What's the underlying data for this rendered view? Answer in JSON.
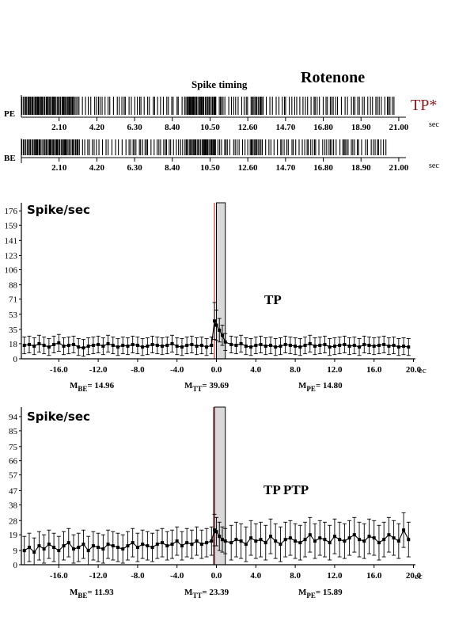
{
  "raster": {
    "spike_timing_label": "Spike timing",
    "condition_label": "Rotenone",
    "tag_label": "TP*",
    "tag_color": "#8b1a1a",
    "unit_label": "sec",
    "ticks": [
      "2.10",
      "4.20",
      "6.30",
      "8.40",
      "10.50",
      "12.60",
      "14.70",
      "16.80",
      "18.90",
      "21.00"
    ],
    "rows": [
      {
        "label": "PE",
        "end": 20.8
      },
      {
        "label": "BE",
        "end": 20.3
      }
    ]
  },
  "chart_data": [
    {
      "type": "line",
      "ylabel": "Spike/sec",
      "xunit": "ec",
      "annotation": "TP",
      "yticks": [
        0,
        18,
        35,
        53,
        71,
        88,
        106,
        123,
        141,
        159,
        176
      ],
      "xticks": [
        -16.0,
        -12.0,
        -8.0,
        -4.0,
        0.0,
        4.0,
        8.0,
        12.0,
        16.0,
        20.0
      ],
      "xtick_labels": [
        "-16.0",
        "-12.0",
        "-8.0",
        "-4.0",
        "0.0",
        "4.0",
        "8.0",
        "12.0",
        "16.0",
        "20.0"
      ],
      "xlim": [
        -19.8,
        20.2
      ],
      "ylim": [
        0,
        180
      ],
      "trigger_line_x": -0.2,
      "shaded_window": [
        0.0,
        0.9
      ],
      "series_be": {
        "x_start": -19.5,
        "step": 0.5,
        "count": 39,
        "mean": 15.5,
        "err": 10.0,
        "values": [
          16,
          17,
          15,
          18,
          16,
          14,
          17,
          19,
          15,
          16,
          17,
          14,
          13,
          15,
          16,
          17,
          15,
          18,
          16,
          14,
          16,
          15,
          17,
          16,
          14,
          15,
          17,
          16,
          15,
          16,
          18,
          15,
          14,
          16,
          17,
          15,
          16,
          14,
          16
        ]
      },
      "series_tt": [
        {
          "x": -0.2,
          "y": 45,
          "err": 22
        },
        {
          "x": 0.0,
          "y": 40,
          "err": 18
        },
        {
          "x": 0.3,
          "y": 34,
          "err": 14
        },
        {
          "x": 0.6,
          "y": 28,
          "err": 12
        },
        {
          "x": 0.9,
          "y": 20,
          "err": 10
        }
      ],
      "series_pe": {
        "x_start": 1.5,
        "step": 0.5,
        "count": 37,
        "mean": 15.0,
        "err": 10.0,
        "values": [
          17,
          16,
          18,
          15,
          14,
          16,
          17,
          15,
          16,
          14,
          15,
          17,
          16,
          15,
          14,
          16,
          18,
          15,
          16,
          17,
          14,
          15,
          16,
          17,
          15,
          16,
          14,
          17,
          16,
          15,
          16,
          17,
          15,
          16,
          14,
          15,
          14
        ]
      },
      "labels": {
        "m_be": "= 14.96",
        "m_tt": "= 39.69",
        "m_pe": "= 14.80"
      }
    },
    {
      "type": "line",
      "ylabel": "Spike/sec",
      "xunit": "ec",
      "annotation": "TP PTP",
      "yticks": [
        0,
        9,
        19,
        28,
        38,
        47,
        57,
        66,
        75,
        85,
        94
      ],
      "xticks": [
        -16.0,
        -12.0,
        -8.0,
        -4.0,
        0.0,
        4.0,
        8.0,
        12.0,
        16.0,
        20.0
      ],
      "xtick_labels": [
        "-16.0",
        "-12.0",
        "-8.0",
        "-4.0",
        "0.0",
        "4.0",
        "8.0",
        "12.0",
        "16.0",
        "20.0"
      ],
      "xlim": [
        -19.8,
        20.2
      ],
      "ylim": [
        0,
        97
      ],
      "trigger_line_x": -0.3,
      "shaded_window": [
        -0.2,
        0.9
      ],
      "series_be": {
        "x_start": -19.5,
        "step": 0.5,
        "count": 39,
        "mean": 12.0,
        "err": 9.0,
        "values": [
          9,
          11,
          8,
          12,
          10,
          13,
          11,
          9,
          12,
          14,
          10,
          11,
          13,
          9,
          12,
          11,
          10,
          13,
          12,
          11,
          10,
          12,
          14,
          11,
          13,
          12,
          11,
          13,
          14,
          12,
          13,
          15,
          12,
          14,
          13,
          15,
          13,
          14,
          15
        ]
      },
      "series_tt": [
        {
          "x": -0.2,
          "y": 22,
          "err": 10
        },
        {
          "x": 0.0,
          "y": 21,
          "err": 9
        },
        {
          "x": 0.3,
          "y": 18,
          "err": 9
        },
        {
          "x": 0.6,
          "y": 16,
          "err": 8
        },
        {
          "x": 0.9,
          "y": 15,
          "err": 8
        }
      ],
      "series_pe": {
        "x_start": 1.5,
        "step": 0.5,
        "count": 37,
        "mean": 15.9,
        "err": 11.0,
        "values": [
          14,
          16,
          15,
          13,
          17,
          15,
          16,
          14,
          18,
          15,
          13,
          16,
          17,
          15,
          14,
          16,
          19,
          15,
          17,
          16,
          14,
          18,
          16,
          15,
          17,
          19,
          16,
          15,
          18,
          17,
          14,
          16,
          19,
          17,
          15,
          22,
          16
        ]
      },
      "labels": {
        "m_be": "= 11.93",
        "m_tt": "= 23.39",
        "m_pe": "= 15.89"
      }
    }
  ]
}
